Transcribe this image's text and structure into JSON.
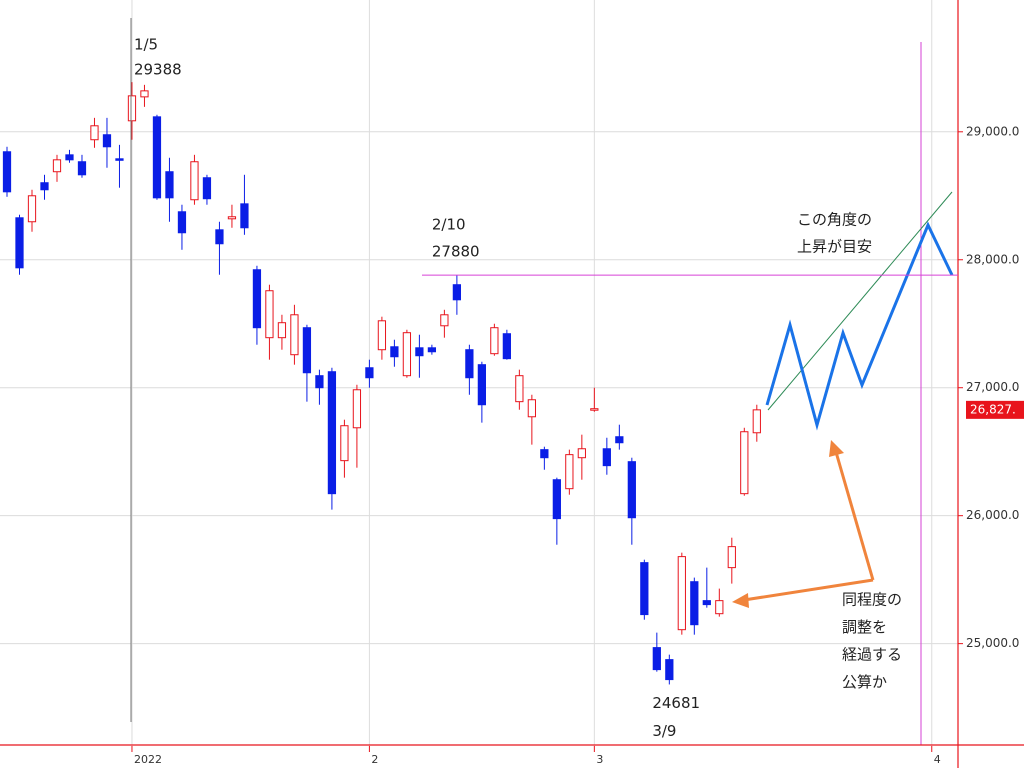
{
  "chart_data": {
    "type": "candlestick",
    "xlim": [
      -0.56,
      76.1
    ],
    "xticks": [
      {
        "value": 10,
        "label": "2022"
      },
      {
        "value": 29,
        "label": "2"
      },
      {
        "value": 47,
        "label": "3"
      },
      {
        "value": 74,
        "label": "4"
      }
    ],
    "ylim": [
      24200,
      30030
    ],
    "yticks": [
      {
        "value": 25000,
        "label": "25,000.0"
      },
      {
        "value": 26000,
        "label": "26,000.0"
      },
      {
        "value": 27000,
        "label": "27,000.0"
      },
      {
        "value": 28000,
        "label": "28,000.0"
      },
      {
        "value": 29000,
        "label": "29,000.0"
      }
    ],
    "grid": true,
    "up_color": "#e8141c",
    "down_color": "#0a1ee6",
    "open": [
      28844,
      28328,
      28297,
      28602,
      28688,
      28820,
      28766,
      28938,
      28977,
      28789,
      29086,
      29273,
      29117,
      28688,
      28375,
      28469,
      28641,
      28234,
      28320,
      28437,
      27922,
      27391,
      27391,
      27258,
      27469,
      27094,
      27125,
      26430,
      26687,
      27156,
      27297,
      27320,
      27094,
      27312,
      27312,
      27484,
      27805,
      27297,
      27180,
      27266,
      27422,
      26891,
      26773,
      26516,
      26281,
      26211,
      26453,
      26828,
      26523,
      26617,
      26422,
      25633,
      24969,
      24875,
      25109,
      25484,
      25336,
      25234,
      25594,
      26172,
      26648
    ],
    "high": [
      28883,
      28352,
      28547,
      28664,
      28820,
      28859,
      28820,
      29109,
      29109,
      28898,
      29388,
      29367,
      29133,
      28797,
      28430,
      28820,
      28664,
      28297,
      28430,
      28664,
      27953,
      27805,
      27570,
      27648,
      27492,
      27141,
      27156,
      26750,
      27023,
      27219,
      27555,
      27375,
      27453,
      27414,
      27336,
      27609,
      27880,
      27336,
      27203,
      27500,
      27453,
      27141,
      26945,
      26539,
      26297,
      26516,
      26633,
      27000,
      26609,
      26711,
      26453,
      25656,
      25086,
      24914,
      25711,
      25516,
      25594,
      25430,
      25828,
      26687,
      26867
    ],
    "low": [
      28492,
      27883,
      28219,
      28469,
      28609,
      28758,
      28641,
      28875,
      28719,
      28563,
      28938,
      29195,
      28469,
      28297,
      28078,
      28430,
      28430,
      27883,
      28250,
      28195,
      27336,
      27219,
      27297,
      27180,
      26891,
      26867,
      26047,
      26297,
      26375,
      27000,
      27219,
      27164,
      27078,
      27078,
      27258,
      27391,
      27570,
      26945,
      26727,
      27250,
      27219,
      26828,
      26555,
      26359,
      25773,
      26164,
      26281,
      26812,
      26320,
      26516,
      25773,
      25187,
      24781,
      24681,
      25070,
      25070,
      25281,
      25211,
      25469,
      26156,
      26578
    ],
    "close": [
      28531,
      27937,
      28500,
      28547,
      28781,
      28781,
      28664,
      29047,
      28883,
      28781,
      29281,
      29320,
      28484,
      28484,
      28211,
      28766,
      28477,
      28125,
      28336,
      28250,
      27469,
      27758,
      27508,
      27570,
      27117,
      27000,
      26172,
      26703,
      26984,
      27078,
      27523,
      27242,
      27430,
      27250,
      27281,
      27570,
      27687,
      27078,
      26867,
      27469,
      27227,
      27094,
      26906,
      26453,
      25977,
      26477,
      26523,
      26836,
      26391,
      26570,
      25984,
      25227,
      24797,
      24719,
      25680,
      25148,
      25305,
      25336,
      25758,
      26656,
      26827
    ],
    "last_price": {
      "value": 26827,
      "label": "26,827."
    },
    "annotations": [
      {
        "date": "1/5",
        "value": 29388,
        "index": 10
      },
      {
        "date": "2/10",
        "value": 27880,
        "index": 36
      },
      {
        "date": "3/9",
        "value": 24681,
        "index": 53
      }
    ],
    "callouts": [
      [
        "この角度の",
        "上昇が目安"
      ],
      [
        "同程度の",
        "調整を",
        "経過する",
        "公算か"
      ]
    ]
  }
}
